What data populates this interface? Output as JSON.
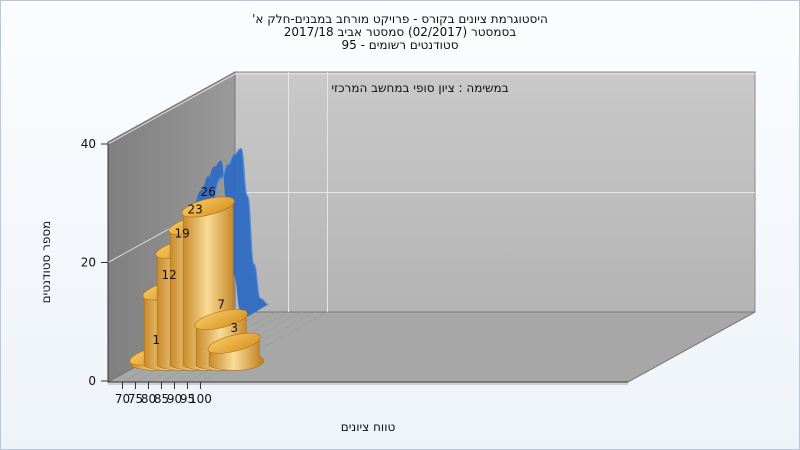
{
  "chart_data": {
    "type": "bar",
    "title_lines": [
      "היסטוגרמת ציונים בקורס - פרויקט מורחב במבנים-חלק א'",
      "בסמסטר  (02/2017)  סמסטר אביב 2017/18",
      "סטודנטים רשומים - 95"
    ],
    "annotation": "במשימה : ציון סופי במחשב המרכזי",
    "xlabel": "טווח ציונים",
    "ylabel": "מספר סטודנטים",
    "x_ticks": [
      "70",
      "75",
      "80",
      "85",
      "90",
      "95",
      "100"
    ],
    "y_ticks": [
      "0",
      "20",
      "40"
    ],
    "ylim": [
      0,
      40
    ],
    "categories": [
      "70",
      "75",
      "80",
      "85",
      "90",
      "95",
      "100"
    ],
    "values": [
      1,
      12,
      19,
      23,
      26,
      7,
      3
    ],
    "data_labels": [
      "1",
      "12",
      "19",
      "23",
      "26",
      "7",
      "3"
    ],
    "curve": {
      "x": [
        75,
        80,
        85,
        87.5,
        90,
        92.5,
        95,
        97.5,
        100,
        103
      ],
      "y": [
        14.5,
        22.5,
        28.5,
        30.8,
        32.5,
        33.5,
        25.5,
        14,
        8.2,
        7.2
      ]
    },
    "grid": true,
    "colors": {
      "bar": "#e9a93c",
      "bar_light": "#f7d98f",
      "bar_dark": "#c07a18",
      "curve": "#2f6bc2",
      "back_wall": "#bdbdbd",
      "side_wall": "#8c8c8c",
      "floor": "#a9a9a9"
    }
  }
}
